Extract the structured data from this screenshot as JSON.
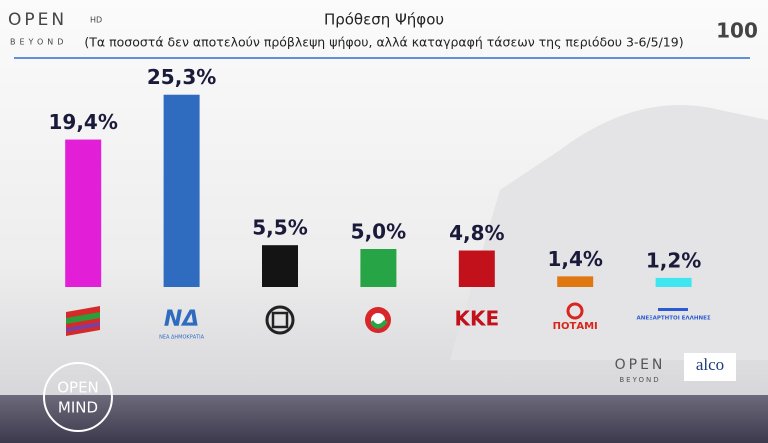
{
  "chart_data": {
    "type": "bar",
    "title": "Πρόθεση Ψήφου",
    "subtitle": "(Τα ποσοστά δεν αποτελούν πρόβλεψη ψήφου, αλλά καταγραφή τάσεων της περιόδου 3-6/5/19)",
    "categories": [
      null,
      "ΝΔ",
      null,
      null,
      "ΚΚΕ",
      "ΠΟΤΑΜΙ",
      "ΑΝΕΞΑΡΤΗΤΟΙ ΕΛΛΗΝΕΣ"
    ],
    "values": [
      19.4,
      25.3,
      5.5,
      5.0,
      4.8,
      1.4,
      1.2
    ],
    "value_labels": [
      "19,4%",
      "25,3%",
      "5,5%",
      "5,0%",
      "4,8%",
      "1,4%",
      "1,2%"
    ],
    "colors": [
      "#e21fd6",
      "#2f6cc0",
      "#141414",
      "#27a546",
      "#c3111b",
      "#e07812",
      "#3fe6f0"
    ]
  },
  "logos": {
    "nd_tagline": "ΝΕΑ ΔΗΜΟΚΡΑΤΙΑ"
  },
  "branding": {
    "channel": "OPEN",
    "channel_hd": "HD",
    "channel_sub": "BEYOND",
    "badge": "100",
    "show_top": "OPEN",
    "show_bottom": "MIND",
    "footer_channel": "OPEN",
    "footer_sub": "BEYOND",
    "pollster": "alco"
  }
}
